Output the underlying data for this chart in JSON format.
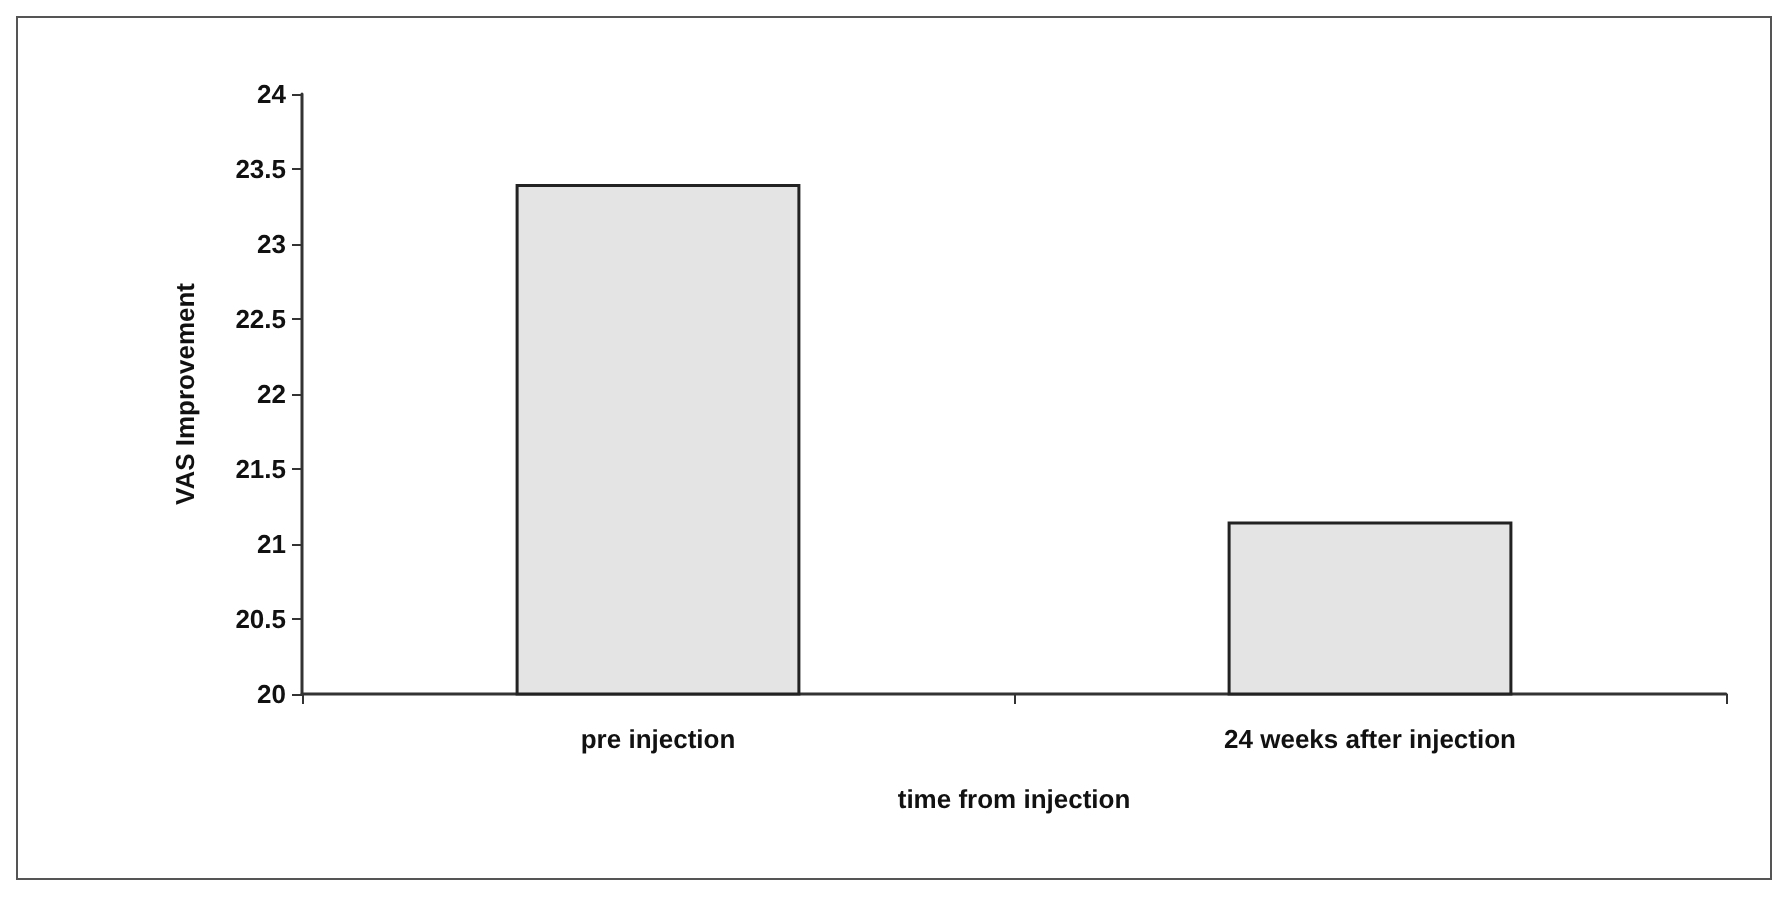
{
  "chart_data": {
    "type": "bar",
    "xlabel": "time from injection",
    "ylabel": "VAS Improvement",
    "categories": [
      "pre injection",
      "24 weeks after injection"
    ],
    "values": [
      23.4,
      21.15
    ],
    "color": "#e4e4e4",
    "ylim": [
      20,
      24
    ],
    "yticks": [
      20,
      20.5,
      21,
      21.5,
      22,
      22.5,
      23,
      23.5,
      24
    ],
    "grid": false
  }
}
